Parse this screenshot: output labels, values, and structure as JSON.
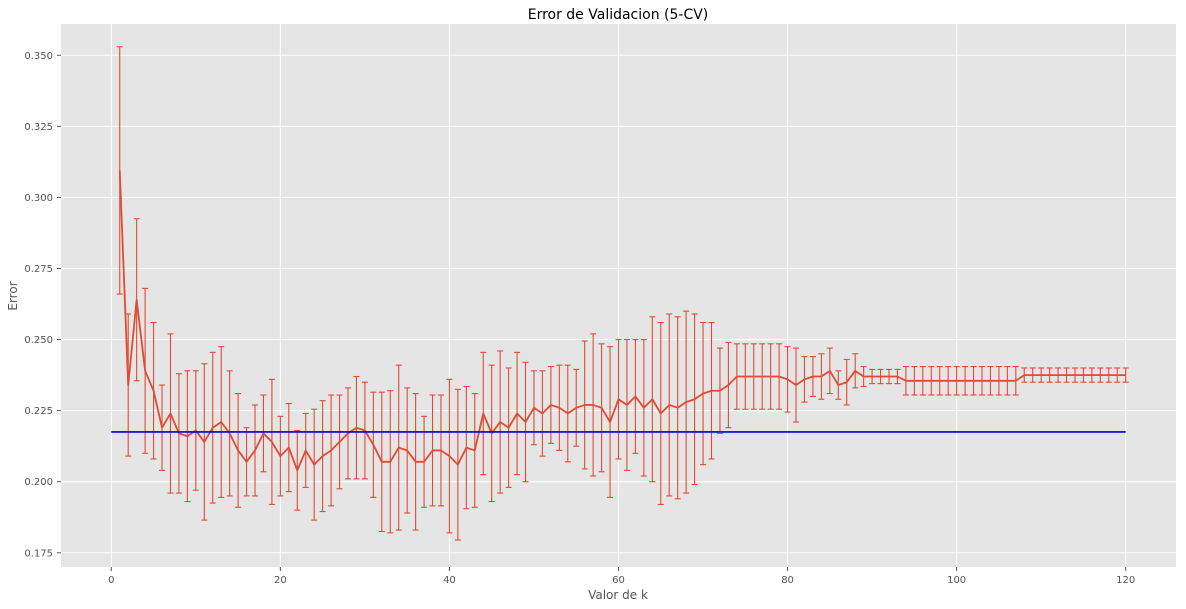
{
  "chart_data": {
    "type": "line",
    "title": "Error de Validacion (5-CV)",
    "xlabel": "Valor de k",
    "ylabel": "Error",
    "xlim": [
      -5.95,
      125.95
    ],
    "ylim": [
      0.17,
      0.361
    ],
    "xticks": [
      0,
      20,
      40,
      60,
      80,
      100,
      120
    ],
    "yticks": [
      0.175,
      0.2,
      0.225,
      0.25,
      0.275,
      0.3,
      0.325,
      0.35
    ],
    "ytick_labels": [
      "0.175",
      "0.200",
      "0.225",
      "0.250",
      "0.275",
      "0.300",
      "0.325",
      "0.350"
    ],
    "grid": true,
    "legend": "none",
    "colors": {
      "series": "#e24a33",
      "reference": "#0000cc",
      "background": "#e5e5e5",
      "grid": "#ffffff"
    },
    "series": [
      {
        "type": "errorbar",
        "x": [
          1,
          2,
          3,
          4,
          5,
          6,
          7,
          8,
          9,
          10,
          11,
          12,
          13,
          14,
          15,
          16,
          17,
          18,
          19,
          20,
          21,
          22,
          23,
          24,
          25,
          26,
          27,
          28,
          29,
          30,
          31,
          32,
          33,
          34,
          35,
          36,
          37,
          38,
          39,
          40,
          41,
          42,
          43,
          44,
          45,
          46,
          47,
          48,
          49,
          50,
          51,
          52,
          53,
          54,
          55,
          56,
          57,
          58,
          59,
          60,
          61,
          62,
          63,
          64,
          65,
          66,
          67,
          68,
          69,
          70,
          71,
          72,
          73,
          74,
          75,
          76,
          77,
          78,
          79,
          80,
          81,
          82,
          83,
          84,
          85,
          86,
          87,
          88,
          89,
          90,
          91,
          92,
          93,
          94,
          95,
          96,
          97,
          98,
          99,
          100,
          101,
          102,
          103,
          104,
          105,
          106,
          107,
          108,
          109,
          110,
          111,
          112,
          113,
          114,
          115,
          116,
          117,
          118,
          119,
          120
        ],
        "y": [
          0.3095,
          0.234,
          0.264,
          0.239,
          0.232,
          0.219,
          0.224,
          0.217,
          0.216,
          0.218,
          0.214,
          0.219,
          0.221,
          0.217,
          0.211,
          0.207,
          0.211,
          0.217,
          0.214,
          0.209,
          0.212,
          0.204,
          0.211,
          0.206,
          0.209,
          0.211,
          0.214,
          0.217,
          0.219,
          0.218,
          0.213,
          0.207,
          0.207,
          0.212,
          0.211,
          0.207,
          0.207,
          0.211,
          0.211,
          0.209,
          0.206,
          0.212,
          0.211,
          0.224,
          0.217,
          0.221,
          0.219,
          0.224,
          0.221,
          0.226,
          0.224,
          0.227,
          0.226,
          0.224,
          0.226,
          0.227,
          0.227,
          0.226,
          0.221,
          0.229,
          0.227,
          0.23,
          0.226,
          0.229,
          0.224,
          0.227,
          0.226,
          0.228,
          0.229,
          0.231,
          0.232,
          0.232,
          0.234,
          0.237,
          0.237,
          0.237,
          0.237,
          0.237,
          0.237,
          0.236,
          0.234,
          0.236,
          0.237,
          0.237,
          0.239,
          0.234,
          0.235,
          0.239,
          0.237,
          0.237,
          0.237,
          0.237,
          0.237,
          0.2355,
          0.2355,
          0.2355,
          0.2355,
          0.2355,
          0.2355,
          0.2355,
          0.2355,
          0.2355,
          0.2355,
          0.2355,
          0.2355,
          0.2355,
          0.2355,
          0.2375,
          0.2375,
          0.2375,
          0.2375,
          0.2375,
          0.2375,
          0.2375,
          0.2375,
          0.2375,
          0.2375,
          0.2375,
          0.2375,
          0.2375
        ],
        "err": [
          0.0435,
          0.025,
          0.0285,
          0.029,
          0.024,
          0.015,
          0.028,
          0.021,
          0.023,
          0.021,
          0.0275,
          0.0265,
          0.0265,
          0.022,
          0.02,
          0.012,
          0.016,
          0.0135,
          0.022,
          0.014,
          0.0155,
          0.014,
          0.013,
          0.0195,
          0.0195,
          0.0195,
          0.0165,
          0.016,
          0.018,
          0.017,
          0.0185,
          0.0245,
          0.025,
          0.029,
          0.022,
          0.024,
          0.016,
          0.0195,
          0.0195,
          0.027,
          0.0265,
          0.0215,
          0.02,
          0.0215,
          0.024,
          0.025,
          0.021,
          0.0215,
          0.021,
          0.013,
          0.015,
          0.0135,
          0.015,
          0.017,
          0.0135,
          0.0225,
          0.025,
          0.0225,
          0.0265,
          0.021,
          0.023,
          0.02,
          0.024,
          0.029,
          0.032,
          0.032,
          0.032,
          0.032,
          0.03,
          0.025,
          0.024,
          0.015,
          0.015,
          0.0115,
          0.0115,
          0.0115,
          0.0115,
          0.0115,
          0.0115,
          0.0115,
          0.013,
          0.008,
          0.007,
          0.008,
          0.008,
          0.005,
          0.008,
          0.006,
          0.0035,
          0.0025,
          0.0025,
          0.0025,
          0.0025,
          0.005,
          0.005,
          0.005,
          0.005,
          0.005,
          0.005,
          0.005,
          0.005,
          0.005,
          0.005,
          0.005,
          0.005,
          0.005,
          0.005,
          0.0025,
          0.0025,
          0.0025,
          0.0025,
          0.0025,
          0.0025,
          0.0025,
          0.0025,
          0.0025,
          0.0025,
          0.0025,
          0.0025,
          0.0025
        ]
      },
      {
        "type": "hline",
        "y": 0.2175,
        "x_range": [
          0,
          120
        ]
      }
    ]
  }
}
